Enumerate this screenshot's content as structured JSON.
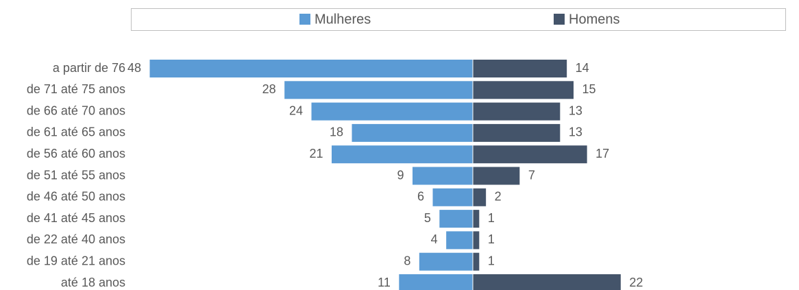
{
  "chart_data": {
    "type": "pyramid",
    "categories": [
      "a partir de 76",
      "de 71 até 75 anos",
      "de 66 até 70 anos",
      "de 61 até 65 anos",
      "de 56 até 60 anos",
      "de 51 até 55 anos",
      "de 46 até 50 anos",
      "de 41 até 45 anos",
      "de 22 até 40 anos",
      "de 19 até 21 anos",
      "até 18 anos"
    ],
    "series": [
      {
        "name": "Mulheres",
        "color": "#5b9bd5",
        "values": [
          48,
          28,
          24,
          18,
          21,
          9,
          6,
          5,
          4,
          8,
          11
        ]
      },
      {
        "name": "Homens",
        "color": "#44546a",
        "values": [
          14,
          15,
          13,
          13,
          17,
          7,
          2,
          1,
          1,
          1,
          22
        ]
      }
    ],
    "legend": "top"
  }
}
